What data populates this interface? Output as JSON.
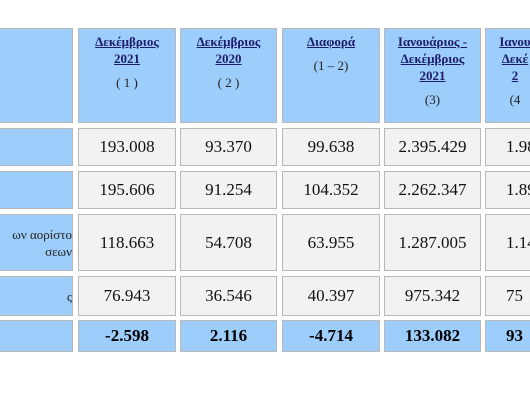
{
  "table": {
    "header": [
      {
        "lines": [
          "Δεκέμβριος",
          "2021"
        ],
        "note": "( 1 )"
      },
      {
        "lines": [
          "Δεκέμβριος",
          "2020"
        ],
        "note": "( 2 )"
      },
      {
        "lines": [
          "Διαφορά"
        ],
        "note": "(1 – 2)"
      },
      {
        "lines": [
          "Ιανουάριος -",
          "Δεκέμβριος",
          "2021"
        ],
        "note": "(3)"
      },
      {
        "lines": [
          "Ιανου",
          "Δεκέ",
          "2"
        ],
        "note": "(4"
      }
    ],
    "rows": [
      {
        "label": [],
        "cells": [
          "193.008",
          "93.370",
          "99.638",
          "2.395.429",
          "1.98"
        ]
      },
      {
        "label": [],
        "cells": [
          "195.606",
          "91.254",
          "104.352",
          "2.262.347",
          "1.89"
        ]
      },
      {
        "label": [
          "ων αορίστο",
          "σεων"
        ],
        "cells": [
          "118.663",
          "54.708",
          "63.955",
          "1.287.005",
          "1.14"
        ]
      },
      {
        "label": [
          "ς"
        ],
        "cells": [
          "76.943",
          "36.546",
          "40.397",
          "975.342",
          "75"
        ]
      },
      {
        "label": [],
        "cells": [
          "-2.598",
          "2.116",
          "-4.714",
          "133.082",
          "93"
        ]
      }
    ]
  }
}
